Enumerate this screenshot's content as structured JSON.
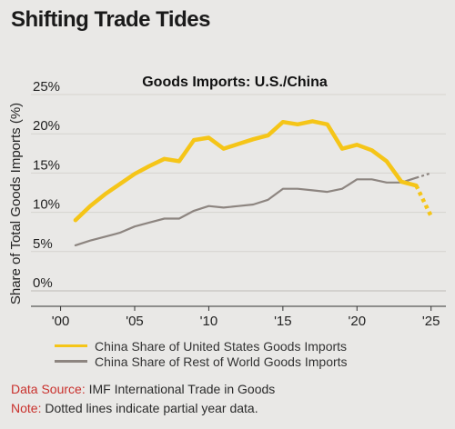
{
  "page": {
    "title": "Shifting Trade Tides"
  },
  "chart_data": {
    "type": "line",
    "title": "Goods Imports: U.S./China",
    "ylabel": "Share of Total Goods Imports (%)",
    "xlabel": "",
    "xlim": [
      1998,
      2026
    ],
    "ylim": [
      0,
      25
    ],
    "x_ticks": [
      {
        "value": 2000,
        "label": "'00"
      },
      {
        "value": 2005,
        "label": "'05"
      },
      {
        "value": 2010,
        "label": "'10"
      },
      {
        "value": 2015,
        "label": "'15"
      },
      {
        "value": 2020,
        "label": "'20"
      },
      {
        "value": 2025,
        "label": "'25"
      }
    ],
    "y_ticks": [
      {
        "value": 0,
        "label": "0%"
      },
      {
        "value": 5,
        "label": "5%"
      },
      {
        "value": 10,
        "label": "10%"
      },
      {
        "value": 15,
        "label": "15%"
      },
      {
        "value": 20,
        "label": "20%"
      },
      {
        "value": 25,
        "label": "25%"
      }
    ],
    "grid": true,
    "series": [
      {
        "name": "China Share of United States Goods Imports",
        "color": "#f5c518",
        "x": [
          2001,
          2002,
          2003,
          2004,
          2005,
          2006,
          2007,
          2008,
          2009,
          2010,
          2011,
          2012,
          2013,
          2014,
          2015,
          2016,
          2017,
          2018,
          2019,
          2020,
          2021,
          2022,
          2023,
          2024
        ],
        "y": [
          9.0,
          10.8,
          12.3,
          13.6,
          14.9,
          15.9,
          16.8,
          16.5,
          19.2,
          19.5,
          18.1,
          18.7,
          19.3,
          19.8,
          21.5,
          21.2,
          21.6,
          21.2,
          18.1,
          18.6,
          17.9,
          16.5,
          13.9,
          13.4
        ],
        "partial_x": [
          2024,
          2025
        ],
        "partial_y": [
          13.4,
          9.5
        ]
      },
      {
        "name": "China Share of Rest of World Goods Imports",
        "color": "#8d8580",
        "x": [
          2001,
          2002,
          2003,
          2004,
          2005,
          2006,
          2007,
          2008,
          2009,
          2010,
          2011,
          2012,
          2013,
          2014,
          2015,
          2016,
          2017,
          2018,
          2019,
          2020,
          2021,
          2022,
          2023,
          2024
        ],
        "y": [
          5.8,
          6.4,
          6.9,
          7.4,
          8.2,
          8.7,
          9.2,
          9.2,
          10.2,
          10.8,
          10.6,
          10.8,
          11.0,
          11.6,
          13.0,
          13.0,
          12.8,
          12.6,
          13.0,
          14.2,
          14.2,
          13.8,
          13.8,
          14.4
        ],
        "partial_x": [
          2024,
          2025
        ],
        "partial_y": [
          14.4,
          15.0
        ]
      }
    ]
  },
  "footer": {
    "source_label": "Data Source:",
    "source_text": "IMF International Trade in Goods",
    "note_label": "Note:",
    "note_text": "Dotted lines indicate partial year data."
  }
}
